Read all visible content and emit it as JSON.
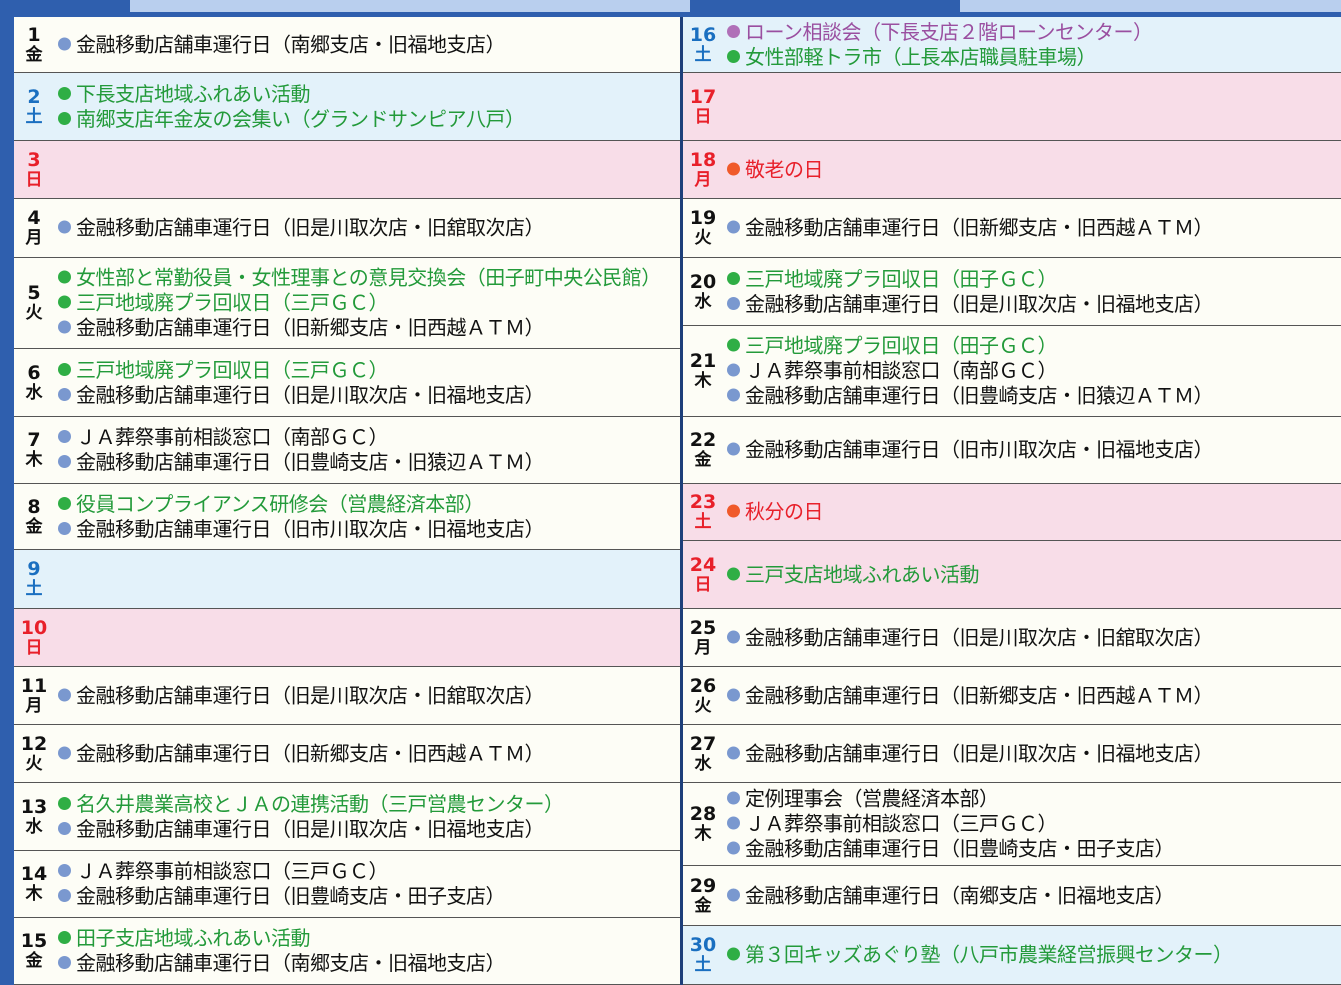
{
  "days": [
    {
      "day": "1",
      "weekday": "金",
      "color": "#111111",
      "bg": "#fdfdf6",
      "events": [
        {
          "text": "金融移動店舗車運行日（南郷支店・旧福地支店）",
          "color": "#111111",
          "bullet": "#7a98cf"
        }
      ]
    },
    {
      "day": "2",
      "weekday": "土",
      "color": "#1a6fc0",
      "bg": "#e3f2fa",
      "events": [
        {
          "text": "下長支店地域ふれあい活動",
          "color": "#239a3a",
          "bullet": "#2fae45"
        },
        {
          "text": "南郷支店年金友の会集い（グランドサンピア八戸）",
          "color": "#239a3a",
          "bullet": "#2fae45"
        }
      ]
    },
    {
      "day": "3",
      "weekday": "日",
      "color": "#e8202a",
      "bg": "#f8dde8",
      "events": []
    },
    {
      "day": "4",
      "weekday": "月",
      "color": "#111111",
      "bg": "#fdfdf6",
      "events": [
        {
          "text": "金融移動店舗車運行日（旧是川取次店・旧舘取次店）",
          "color": "#111111",
          "bullet": "#7a98cf"
        }
      ]
    },
    {
      "day": "5",
      "weekday": "火",
      "color": "#111111",
      "bg": "#fdfdf6",
      "events": [
        {
          "text": "女性部と常勤役員・女性理事との意見交換会（田子町中央公民館）",
          "color": "#239a3a",
          "bullet": "#2fae45"
        },
        {
          "text": "三戸地域廃プラ回収日（三戸ＧＣ）",
          "color": "#239a3a",
          "bullet": "#2fae45"
        },
        {
          "text": "金融移動店舗車運行日（旧新郷支店・旧西越ＡＴＭ）",
          "color": "#111111",
          "bullet": "#7a98cf"
        }
      ]
    },
    {
      "day": "6",
      "weekday": "水",
      "color": "#111111",
      "bg": "#fdfdf6",
      "events": [
        {
          "text": "三戸地域廃プラ回収日（三戸ＧＣ）",
          "color": "#239a3a",
          "bullet": "#2fae45"
        },
        {
          "text": "金融移動店舗車運行日（旧是川取次店・旧福地支店）",
          "color": "#111111",
          "bullet": "#7a98cf"
        }
      ]
    },
    {
      "day": "7",
      "weekday": "木",
      "color": "#111111",
      "bg": "#fdfdf6",
      "events": [
        {
          "text": "ＪＡ葬祭事前相談窓口（南部ＧＣ）",
          "color": "#111111",
          "bullet": "#7a98cf"
        },
        {
          "text": "金融移動店舗車運行日（旧豊崎支店・旧猿辺ＡＴＭ）",
          "color": "#111111",
          "bullet": "#7a98cf"
        }
      ]
    },
    {
      "day": "8",
      "weekday": "金",
      "color": "#111111",
      "bg": "#fdfdf6",
      "events": [
        {
          "text": "役員コンプライアンス研修会（営農経済本部）",
          "color": "#239a3a",
          "bullet": "#2fae45"
        },
        {
          "text": "金融移動店舗車運行日（旧市川取次店・旧福地支店）",
          "color": "#111111",
          "bullet": "#7a98cf"
        }
      ]
    },
    {
      "day": "9",
      "weekday": "土",
      "color": "#1a6fc0",
      "bg": "#e3f2fa",
      "events": []
    },
    {
      "day": "10",
      "weekday": "日",
      "color": "#e8202a",
      "bg": "#f8dde8",
      "events": []
    },
    {
      "day": "11",
      "weekday": "月",
      "color": "#111111",
      "bg": "#fdfdf6",
      "events": [
        {
          "text": "金融移動店舗車運行日（旧是川取次店・旧舘取次店）",
          "color": "#111111",
          "bullet": "#7a98cf"
        }
      ]
    },
    {
      "day": "12",
      "weekday": "火",
      "color": "#111111",
      "bg": "#fdfdf6",
      "events": [
        {
          "text": "金融移動店舗車運行日（旧新郷支店・旧西越ＡＴＭ）",
          "color": "#111111",
          "bullet": "#7a98cf"
        }
      ]
    },
    {
      "day": "13",
      "weekday": "水",
      "color": "#111111",
      "bg": "#fdfdf6",
      "events": [
        {
          "text": "名久井農業高校とＪＡの連携活動（三戸営農センター）",
          "color": "#239a3a",
          "bullet": "#2fae45"
        },
        {
          "text": "金融移動店舗車運行日（旧是川取次店・旧福地支店）",
          "color": "#111111",
          "bullet": "#7a98cf"
        }
      ]
    },
    {
      "day": "14",
      "weekday": "木",
      "color": "#111111",
      "bg": "#fdfdf6",
      "events": [
        {
          "text": "ＪＡ葬祭事前相談窓口（三戸ＧＣ）",
          "color": "#111111",
          "bullet": "#7a98cf"
        },
        {
          "text": "金融移動店舗車運行日（旧豊崎支店・田子支店）",
          "color": "#111111",
          "bullet": "#7a98cf"
        }
      ]
    },
    {
      "day": "15",
      "weekday": "金",
      "color": "#111111",
      "bg": "#fdfdf6",
      "events": [
        {
          "text": "田子支店地域ふれあい活動",
          "color": "#239a3a",
          "bullet": "#2fae45"
        },
        {
          "text": "金融移動店舗車運行日（南郷支店・旧福地支店）",
          "color": "#111111",
          "bullet": "#7a98cf"
        }
      ]
    },
    {
      "day": "16",
      "weekday": "土",
      "color": "#1a6fc0",
      "bg": "#e3f2fa",
      "events": [
        {
          "text": "ローン相談会（下長支店２階ローンセンター）",
          "color": "#9a4fa0",
          "bullet": "#b070b8"
        },
        {
          "text": "女性部軽トラ市（上長本店職員駐車場）",
          "color": "#239a3a",
          "bullet": "#2fae45"
        }
      ]
    },
    {
      "day": "17",
      "weekday": "日",
      "color": "#e8202a",
      "bg": "#f8dde8",
      "events": []
    },
    {
      "day": "18",
      "weekday": "月",
      "color": "#e8202a",
      "bg": "#f8dde8",
      "events": [
        {
          "text": "敬老の日",
          "color": "#e8202a",
          "bullet": "#f05a2a"
        }
      ]
    },
    {
      "day": "19",
      "weekday": "火",
      "color": "#111111",
      "bg": "#fdfdf6",
      "events": [
        {
          "text": "金融移動店舗車運行日（旧新郷支店・旧西越ＡＴＭ）",
          "color": "#111111",
          "bullet": "#7a98cf"
        }
      ]
    },
    {
      "day": "20",
      "weekday": "水",
      "color": "#111111",
      "bg": "#fdfdf6",
      "events": [
        {
          "text": "三戸地域廃プラ回収日（田子ＧＣ）",
          "color": "#239a3a",
          "bullet": "#2fae45"
        },
        {
          "text": "金融移動店舗車運行日（旧是川取次店・旧福地支店）",
          "color": "#111111",
          "bullet": "#7a98cf"
        }
      ]
    },
    {
      "day": "21",
      "weekday": "木",
      "color": "#111111",
      "bg": "#fdfdf6",
      "events": [
        {
          "text": "三戸地域廃プラ回収日（田子ＧＣ）",
          "color": "#239a3a",
          "bullet": "#2fae45"
        },
        {
          "text": "ＪＡ葬祭事前相談窓口（南部ＧＣ）",
          "color": "#111111",
          "bullet": "#7a98cf"
        },
        {
          "text": "金融移動店舗車運行日（旧豊崎支店・旧猿辺ＡＴＭ）",
          "color": "#111111",
          "bullet": "#7a98cf"
        }
      ]
    },
    {
      "day": "22",
      "weekday": "金",
      "color": "#111111",
      "bg": "#fdfdf6",
      "events": [
        {
          "text": "金融移動店舗車運行日（旧市川取次店・旧福地支店）",
          "color": "#111111",
          "bullet": "#7a98cf"
        }
      ]
    },
    {
      "day": "23",
      "weekday": "土",
      "color": "#e8202a",
      "bg": "#f8dde8",
      "events": [
        {
          "text": "秋分の日",
          "color": "#e8202a",
          "bullet": "#f05a2a"
        }
      ]
    },
    {
      "day": "24",
      "weekday": "日",
      "color": "#e8202a",
      "bg": "#f8dde8",
      "events": [
        {
          "text": "三戸支店地域ふれあい活動",
          "color": "#239a3a",
          "bullet": "#2fae45"
        }
      ]
    },
    {
      "day": "25",
      "weekday": "月",
      "color": "#111111",
      "bg": "#fdfdf6",
      "events": [
        {
          "text": "金融移動店舗車運行日（旧是川取次店・旧舘取次店）",
          "color": "#111111",
          "bullet": "#7a98cf"
        }
      ]
    },
    {
      "day": "26",
      "weekday": "火",
      "color": "#111111",
      "bg": "#fdfdf6",
      "events": [
        {
          "text": "金融移動店舗車運行日（旧新郷支店・旧西越ＡＴＭ）",
          "color": "#111111",
          "bullet": "#7a98cf"
        }
      ]
    },
    {
      "day": "27",
      "weekday": "水",
      "color": "#111111",
      "bg": "#fdfdf6",
      "events": [
        {
          "text": "金融移動店舗車運行日（旧是川取次店・旧福地支店）",
          "color": "#111111",
          "bullet": "#7a98cf"
        }
      ]
    },
    {
      "day": "28",
      "weekday": "木",
      "color": "#111111",
      "bg": "#fdfdf6",
      "events": [
        {
          "text": "定例理事会（営農経済本部）",
          "color": "#111111",
          "bullet": "#7a98cf"
        },
        {
          "text": "ＪＡ葬祭事前相談窓口（三戸ＧＣ）",
          "color": "#111111",
          "bullet": "#7a98cf"
        },
        {
          "text": "金融移動店舗車運行日（旧豊崎支店・田子支店）",
          "color": "#111111",
          "bullet": "#7a98cf"
        }
      ]
    },
    {
      "day": "29",
      "weekday": "金",
      "color": "#111111",
      "bg": "#fdfdf6",
      "events": [
        {
          "text": "金融移動店舗車運行日（南郷支店・旧福地支店）",
          "color": "#111111",
          "bullet": "#7a98cf"
        }
      ]
    },
    {
      "day": "30",
      "weekday": "土",
      "color": "#1a6fc0",
      "bg": "#e3f2fa",
      "events": [
        {
          "text": "第３回キッズあぐり塾（八戸市農業経営振興センター）",
          "color": "#239a3a",
          "bullet": "#2fae45"
        }
      ]
    }
  ]
}
